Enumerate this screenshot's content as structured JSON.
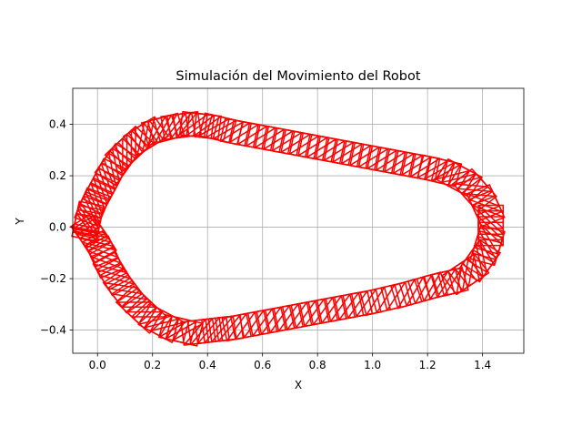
{
  "chart_data": {
    "type": "line",
    "title": "Simulación del Movimiento del Robot",
    "xlabel": "X",
    "ylabel": "Y",
    "xlim": [
      -0.09,
      1.55
    ],
    "ylim": [
      -0.49,
      0.54
    ],
    "x_ticks": [
      0.0,
      0.2,
      0.4,
      0.6,
      0.8,
      1.0,
      1.2,
      1.4
    ],
    "x_tick_labels": [
      "0.0",
      "0.2",
      "0.4",
      "0.6",
      "0.8",
      "1.0",
      "1.2",
      "1.4"
    ],
    "y_ticks": [
      -0.4,
      -0.2,
      0.0,
      0.2,
      0.4
    ],
    "y_tick_labels": [
      "−0.4",
      "−0.2",
      "0.0",
      "0.2",
      "0.4"
    ],
    "grid": true,
    "legend": "none",
    "series": [
      {
        "color": "#ff0000",
        "path": [
          [
            -0.04,
            0.0
          ],
          [
            -0.03,
            0.05
          ],
          [
            -0.01,
            0.1
          ],
          [
            0.02,
            0.16
          ],
          [
            0.05,
            0.22
          ],
          [
            0.09,
            0.28
          ],
          [
            0.14,
            0.33
          ],
          [
            0.2,
            0.37
          ],
          [
            0.27,
            0.39
          ],
          [
            0.34,
            0.4
          ],
          [
            0.42,
            0.39
          ],
          [
            0.5,
            0.37
          ],
          [
            0.6,
            0.35
          ],
          [
            0.7,
            0.33
          ],
          [
            0.8,
            0.31
          ],
          [
            0.9,
            0.29
          ],
          [
            1.0,
            0.27
          ],
          [
            1.1,
            0.25
          ],
          [
            1.2,
            0.23
          ],
          [
            1.28,
            0.21
          ],
          [
            1.35,
            0.17
          ],
          [
            1.4,
            0.11
          ],
          [
            1.43,
            0.04
          ],
          [
            1.43,
            -0.03
          ],
          [
            1.41,
            -0.1
          ],
          [
            1.37,
            -0.16
          ],
          [
            1.3,
            -0.21
          ],
          [
            1.22,
            -0.23
          ],
          [
            1.12,
            -0.26
          ],
          [
            1.0,
            -0.29
          ],
          [
            0.9,
            -0.31
          ],
          [
            0.8,
            -0.33
          ],
          [
            0.7,
            -0.35
          ],
          [
            0.6,
            -0.37
          ],
          [
            0.5,
            -0.39
          ],
          [
            0.42,
            -0.4
          ],
          [
            0.34,
            -0.41
          ],
          [
            0.26,
            -0.39
          ],
          [
            0.19,
            -0.35
          ],
          [
            0.13,
            -0.29
          ],
          [
            0.08,
            -0.22
          ],
          [
            0.04,
            -0.15
          ],
          [
            0.01,
            -0.08
          ],
          [
            -0.02,
            -0.03
          ],
          [
            -0.04,
            0.0
          ]
        ],
        "marker": "rotating square, side 0.09 plus one diagonal, drawn at every step along the path"
      }
    ]
  }
}
